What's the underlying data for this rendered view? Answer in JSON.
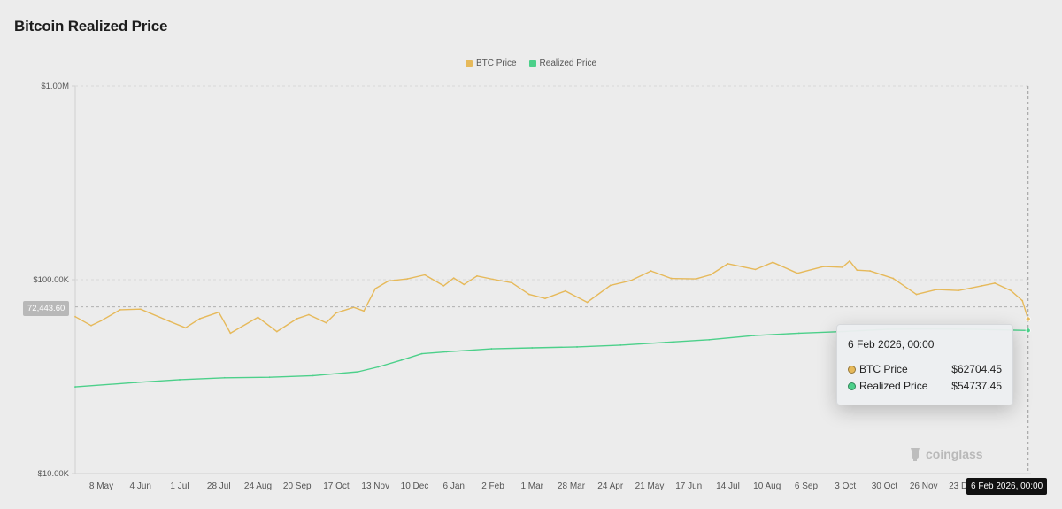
{
  "title": "Bitcoin Realized Price",
  "colors": {
    "btc": "#e6b95a",
    "realized": "#4cd08a",
    "axis": "#d0d0d0",
    "text": "#555555"
  },
  "legend": [
    {
      "label": "BTC Price",
      "color": "#e6b95a"
    },
    {
      "label": "Realized Price",
      "color": "#4cd08a"
    }
  ],
  "tooltip": {
    "date": "6 Feb 2026, 00:00",
    "rows": [
      {
        "label": "BTC Price",
        "value": "$62704.45",
        "color": "#e6b95a"
      },
      {
        "label": "Realized Price",
        "value": "$54737.45",
        "color": "#4cd08a"
      }
    ]
  },
  "crosshair": {
    "x_label": "6 Feb 2026, 00:00",
    "y_label": "72,443.60",
    "y_value": 72443.6
  },
  "watermark": "coinglass",
  "chart_data": {
    "type": "line",
    "title": "Bitcoin Realized Price",
    "y_scale": "log",
    "ylim": [
      10000,
      1000000
    ],
    "xlim": [
      "2024-04-20",
      "2026-02-08"
    ],
    "y_ticks": [
      {
        "value": 1000000,
        "label": "$1.00M"
      },
      {
        "value": 100000,
        "label": "$100.00K"
      },
      {
        "value": 10000,
        "label": "$10.00K"
      }
    ],
    "x_ticks": [
      {
        "date": "2024-05-08",
        "label": "8 May"
      },
      {
        "date": "2024-06-04",
        "label": "4 Jun"
      },
      {
        "date": "2024-07-01",
        "label": "1 Jul"
      },
      {
        "date": "2024-07-28",
        "label": "28 Jul"
      },
      {
        "date": "2024-08-24",
        "label": "24 Aug"
      },
      {
        "date": "2024-09-20",
        "label": "20 Sep"
      },
      {
        "date": "2024-10-17",
        "label": "17 Oct"
      },
      {
        "date": "2024-11-13",
        "label": "13 Nov"
      },
      {
        "date": "2024-12-10",
        "label": "10 Dec"
      },
      {
        "date": "2025-01-06",
        "label": "6 Jan"
      },
      {
        "date": "2025-02-02",
        "label": "2 Feb"
      },
      {
        "date": "2025-03-01",
        "label": "1 Mar"
      },
      {
        "date": "2025-03-28",
        "label": "28 Mar"
      },
      {
        "date": "2025-04-24",
        "label": "24 Apr"
      },
      {
        "date": "2025-05-21",
        "label": "21 May"
      },
      {
        "date": "2025-06-17",
        "label": "17 Jun"
      },
      {
        "date": "2025-07-14",
        "label": "14 Jul"
      },
      {
        "date": "2025-08-10",
        "label": "10 Aug"
      },
      {
        "date": "2025-09-06",
        "label": "6 Sep"
      },
      {
        "date": "2025-10-03",
        "label": "3 Oct"
      },
      {
        "date": "2025-10-30",
        "label": "30 Oct"
      },
      {
        "date": "2025-11-26",
        "label": "26 Nov"
      },
      {
        "date": "2025-12-23",
        "label": "23 Dec"
      }
    ],
    "legend_position": "top-center",
    "grid": false,
    "series": [
      {
        "name": "BTC Price",
        "color": "#e6b95a",
        "points": [
          [
            "2024-04-20",
            64500
          ],
          [
            "2024-05-01",
            58000
          ],
          [
            "2024-05-08",
            61500
          ],
          [
            "2024-05-21",
            70000
          ],
          [
            "2024-06-04",
            70500
          ],
          [
            "2024-06-24",
            61000
          ],
          [
            "2024-07-05",
            56500
          ],
          [
            "2024-07-15",
            63000
          ],
          [
            "2024-07-28",
            68000
          ],
          [
            "2024-08-05",
            53000
          ],
          [
            "2024-08-24",
            64000
          ],
          [
            "2024-09-06",
            54000
          ],
          [
            "2024-09-20",
            63000
          ],
          [
            "2024-09-28",
            66000
          ],
          [
            "2024-10-10",
            60000
          ],
          [
            "2024-10-17",
            67500
          ],
          [
            "2024-10-29",
            72000
          ],
          [
            "2024-11-05",
            69000
          ],
          [
            "2024-11-13",
            90000
          ],
          [
            "2024-11-22",
            98500
          ],
          [
            "2024-12-05",
            101000
          ],
          [
            "2024-12-17",
            106000
          ],
          [
            "2024-12-30",
            93000
          ],
          [
            "2025-01-06",
            102000
          ],
          [
            "2025-01-13",
            94500
          ],
          [
            "2025-01-22",
            104500
          ],
          [
            "2025-02-02",
            100500
          ],
          [
            "2025-02-15",
            96500
          ],
          [
            "2025-02-27",
            84000
          ],
          [
            "2025-03-10",
            80000
          ],
          [
            "2025-03-24",
            87500
          ],
          [
            "2025-04-08",
            76500
          ],
          [
            "2025-04-24",
            93500
          ],
          [
            "2025-05-08",
            99000
          ],
          [
            "2025-05-22",
            111000
          ],
          [
            "2025-06-05",
            101500
          ],
          [
            "2025-06-22",
            101000
          ],
          [
            "2025-07-02",
            106000
          ],
          [
            "2025-07-14",
            121000
          ],
          [
            "2025-08-02",
            113000
          ],
          [
            "2025-08-14",
            123000
          ],
          [
            "2025-08-31",
            108000
          ],
          [
            "2025-09-18",
            117000
          ],
          [
            "2025-10-01",
            116000
          ],
          [
            "2025-10-06",
            125000
          ],
          [
            "2025-10-11",
            112000
          ],
          [
            "2025-10-20",
            111000
          ],
          [
            "2025-11-05",
            101500
          ],
          [
            "2025-11-21",
            84000
          ],
          [
            "2025-12-05",
            89000
          ],
          [
            "2025-12-20",
            88000
          ],
          [
            "2026-01-05",
            93000
          ],
          [
            "2026-01-14",
            96000
          ],
          [
            "2026-01-25",
            88000
          ],
          [
            "2026-02-02",
            78000
          ],
          [
            "2026-02-06",
            62704.45
          ]
        ]
      },
      {
        "name": "Realized Price",
        "color": "#4cd08a",
        "points": [
          [
            "2024-04-20",
            28000
          ],
          [
            "2024-06-01",
            29500
          ],
          [
            "2024-07-01",
            30500
          ],
          [
            "2024-08-01",
            31200
          ],
          [
            "2024-09-01",
            31400
          ],
          [
            "2024-10-01",
            32000
          ],
          [
            "2024-11-01",
            33500
          ],
          [
            "2024-11-15",
            35500
          ],
          [
            "2024-12-01",
            38500
          ],
          [
            "2024-12-15",
            41500
          ],
          [
            "2025-01-01",
            42500
          ],
          [
            "2025-02-01",
            44000
          ],
          [
            "2025-03-01",
            44500
          ],
          [
            "2025-04-01",
            45000
          ],
          [
            "2025-05-01",
            46000
          ],
          [
            "2025-06-01",
            47500
          ],
          [
            "2025-07-01",
            49000
          ],
          [
            "2025-08-01",
            51500
          ],
          [
            "2025-09-01",
            53000
          ],
          [
            "2025-10-01",
            54000
          ],
          [
            "2025-11-01",
            55500
          ],
          [
            "2025-12-01",
            55800
          ],
          [
            "2026-01-01",
            55500
          ],
          [
            "2026-02-06",
            54737.45
          ]
        ]
      }
    ]
  }
}
